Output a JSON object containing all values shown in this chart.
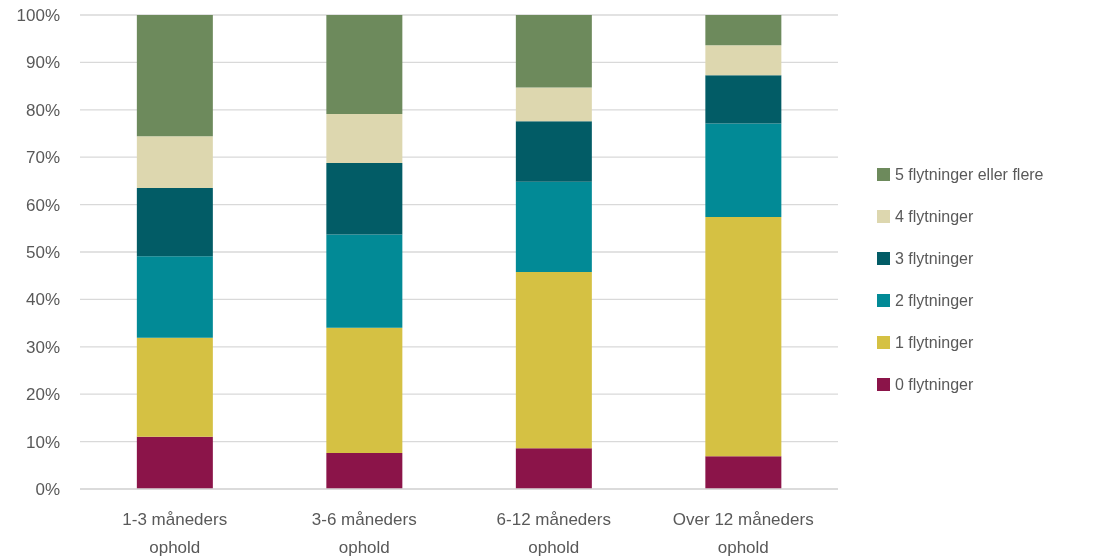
{
  "chart_data": {
    "type": "bar",
    "stacked": true,
    "categories": [
      "1-3 måneders ophold",
      "3-6 måneders ophold",
      "6-12 måneders ophold",
      "Over 12 måneders ophold"
    ],
    "series": [
      {
        "name": "0 flytninger",
        "color": "#8b1449",
        "values": [
          11.0,
          7.6,
          8.6,
          6.9
        ]
      },
      {
        "name": "1 flytninger",
        "color": "#d5c143",
        "values": [
          20.9,
          26.4,
          37.2,
          50.5
        ]
      },
      {
        "name": "2 flytninger",
        "color": "#028a96",
        "values": [
          17.2,
          19.7,
          19.0,
          19.7
        ]
      },
      {
        "name": "3 flytninger",
        "color": "#025c66",
        "values": [
          14.4,
          15.1,
          12.8,
          10.2
        ]
      },
      {
        "name": "4 flytninger",
        "color": "#ddd7af",
        "values": [
          10.9,
          10.3,
          7.1,
          6.3
        ]
      },
      {
        "name": "5 flytninger eller flere",
        "color": "#6d8a5c",
        "values": [
          25.6,
          20.9,
          15.3,
          6.4
        ]
      }
    ],
    "ylim": [
      0,
      100
    ],
    "yticks": [
      {
        "value": 0,
        "label": "0%"
      },
      {
        "value": 10,
        "label": "10%"
      },
      {
        "value": 20,
        "label": "20%"
      },
      {
        "value": 30,
        "label": "30%"
      },
      {
        "value": 40,
        "label": "40%"
      },
      {
        "value": 50,
        "label": "50%"
      },
      {
        "value": 60,
        "label": "60%"
      },
      {
        "value": 70,
        "label": "70%"
      },
      {
        "value": 80,
        "label": "80%"
      },
      {
        "value": 90,
        "label": "90%"
      },
      {
        "value": 100,
        "label": "100%"
      }
    ],
    "grid": "y",
    "legend": "right"
  }
}
